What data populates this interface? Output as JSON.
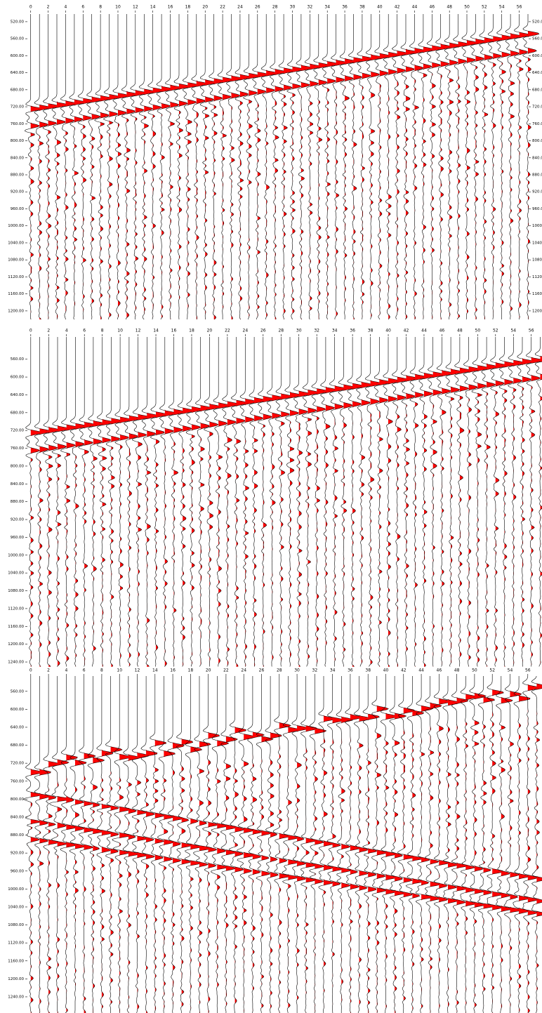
{
  "chart_data": [
    {
      "type": "wiggle",
      "xlim": [
        -0.3,
        57
      ],
      "ylim": [
        502,
        1220
      ],
      "xticks": [
        0,
        2,
        4,
        6,
        8,
        10,
        12,
        14,
        16,
        18,
        20,
        22,
        24,
        26,
        28,
        30,
        32,
        34,
        36,
        38,
        40,
        42,
        44,
        46,
        48,
        50,
        52,
        54,
        56
      ],
      "yticks": [
        {
          "value": 520,
          "label": "520.00"
        },
        {
          "value": 560,
          "label": "560.00"
        },
        {
          "value": 600,
          "label": "600.00"
        },
        {
          "value": 640,
          "label": "640.00"
        },
        {
          "value": 680,
          "label": "680.00"
        },
        {
          "value": 720,
          "label": "720.00"
        },
        {
          "value": 760,
          "label": "760.00"
        },
        {
          "value": 800,
          "label": "800.00"
        },
        {
          "value": 840,
          "label": "840.00"
        },
        {
          "value": 880,
          "label": "880.00"
        },
        {
          "value": 920,
          "label": "920.00"
        },
        {
          "value": 960,
          "label": "960.00"
        },
        {
          "value": 1000,
          "label": "1000.00"
        },
        {
          "value": 1040,
          "label": "1040.00"
        },
        {
          "value": 1080,
          "label": "1080.00"
        },
        {
          "value": 1120,
          "label": "1120.00"
        },
        {
          "value": 1160,
          "label": "1160.00"
        },
        {
          "value": 1200,
          "label": "1200.00"
        }
      ],
      "color": "#ff0000",
      "right_axis": true
    },
    {
      "type": "wiggle",
      "xlim": [
        -0.3,
        57.2
      ],
      "ylim": [
        510,
        1251
      ],
      "xticks": [
        0,
        2,
        4,
        6,
        8,
        10,
        12,
        14,
        16,
        18,
        20,
        22,
        24,
        26,
        28,
        30,
        32,
        34,
        36,
        38,
        40,
        42,
        44,
        46,
        48,
        50,
        52,
        54,
        56
      ],
      "yticks": [
        {
          "value": 560,
          "label": "560.00"
        },
        {
          "value": 600,
          "label": "600.00"
        },
        {
          "value": 640,
          "label": "640.00"
        },
        {
          "value": 680,
          "label": "680.00"
        },
        {
          "value": 720,
          "label": "720.00"
        },
        {
          "value": 760,
          "label": "760.00"
        },
        {
          "value": 800,
          "label": "800.00"
        },
        {
          "value": 840,
          "label": "840.00"
        },
        {
          "value": 880,
          "label": "880.00"
        },
        {
          "value": 920,
          "label": "920.00"
        },
        {
          "value": 960,
          "label": "960.00"
        },
        {
          "value": 1000,
          "label": "1000.00"
        },
        {
          "value": 1040,
          "label": "1040.00"
        },
        {
          "value": 1080,
          "label": "1080.00"
        },
        {
          "value": 1120,
          "label": "1120.00"
        },
        {
          "value": 1160,
          "label": "1160.00"
        },
        {
          "value": 1200,
          "label": "1200.00"
        },
        {
          "value": 1240,
          "label": "1240.00"
        }
      ],
      "color": "#ff0000",
      "right_axis": false
    },
    {
      "type": "wiggle",
      "xlim": [
        -0.3,
        57.6
      ],
      "ylim": [
        526,
        1276
      ],
      "xticks": [
        0,
        2,
        4,
        6,
        8,
        10,
        12,
        14,
        16,
        18,
        20,
        22,
        24,
        26,
        28,
        30,
        32,
        34,
        36,
        38,
        40,
        42,
        44,
        46,
        48,
        50,
        52,
        54,
        56
      ],
      "yticks": [
        {
          "value": 560,
          "label": "560.00"
        },
        {
          "value": 600,
          "label": "600.00"
        },
        {
          "value": 640,
          "label": "640.00"
        },
        {
          "value": 680,
          "label": "680.00"
        },
        {
          "value": 720,
          "label": "720.00"
        },
        {
          "value": 760,
          "label": "760.00"
        },
        {
          "value": 800,
          "label": "800.00"
        },
        {
          "value": 840,
          "label": "840.00"
        },
        {
          "value": 880,
          "label": "880.00"
        },
        {
          "value": 920,
          "label": "920.00"
        },
        {
          "value": 960,
          "label": "960.00"
        },
        {
          "value": 1000,
          "label": "1000.00"
        },
        {
          "value": 1040,
          "label": "1040.00"
        },
        {
          "value": 1080,
          "label": "1080.00"
        },
        {
          "value": 1120,
          "label": "1120.00"
        },
        {
          "value": 1160,
          "label": "1160.00"
        },
        {
          "value": 1200,
          "label": "1200.00"
        },
        {
          "value": 1240,
          "label": "1240.00"
        }
      ],
      "color": "#ff0000",
      "right_axis": false
    }
  ]
}
